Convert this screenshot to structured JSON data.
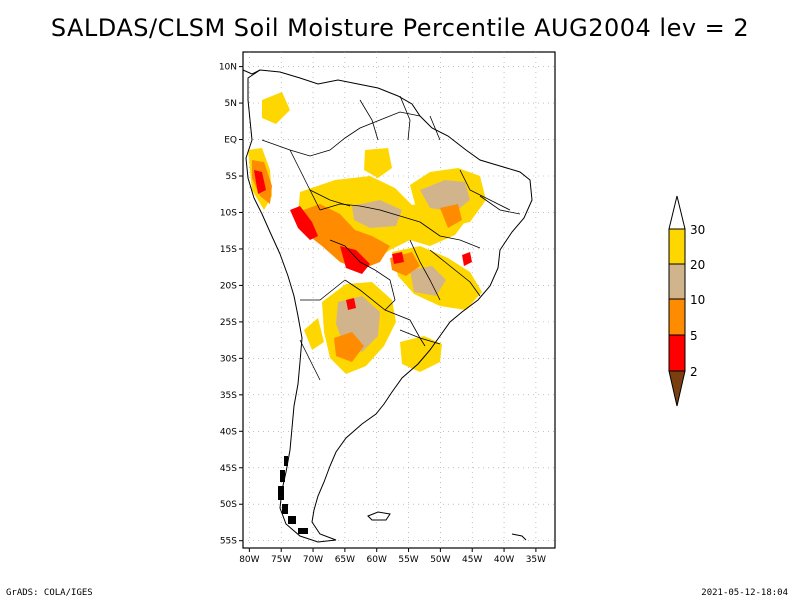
{
  "title": "SALDAS/CLSM Soil Moisture Percentile AUG2004 lev = 2",
  "footer": {
    "left": "GrADS: COLA/IGES",
    "right": "2021-05-12-18:04"
  },
  "map": {
    "lon_range": [
      -81,
      -32
    ],
    "lat_range": [
      -56,
      12
    ],
    "lat_labels": [
      "10N",
      "5N",
      "EQ",
      "5S",
      "10S",
      "15S",
      "20S",
      "25S",
      "30S",
      "35S",
      "40S",
      "45S",
      "50S",
      "55S"
    ],
    "lat_values": [
      10,
      5,
      0,
      -5,
      -10,
      -15,
      -20,
      -25,
      -30,
      -35,
      -40,
      -45,
      -50,
      -55
    ],
    "lon_labels": [
      "80W",
      "75W",
      "70W",
      "65W",
      "60W",
      "55W",
      "50W",
      "45W",
      "40W",
      "35W"
    ],
    "lon_values": [
      -80,
      -75,
      -70,
      -65,
      -60,
      -55,
      -50,
      -45,
      -40,
      -35
    ]
  },
  "legend": {
    "labels": [
      "2",
      "5",
      "10",
      "20",
      "30"
    ],
    "classes": [
      {
        "range": "<2",
        "color": "#7a3f10"
      },
      {
        "range": "2-5",
        "color": "#ff0000"
      },
      {
        "range": "5-10",
        "color": "#ff8c00"
      },
      {
        "range": "10-20",
        "color": "#d2b48c"
      },
      {
        "range": "20-30",
        "color": "#ffd700"
      },
      {
        "range": ">30",
        "color": "#ffffff"
      }
    ]
  }
}
